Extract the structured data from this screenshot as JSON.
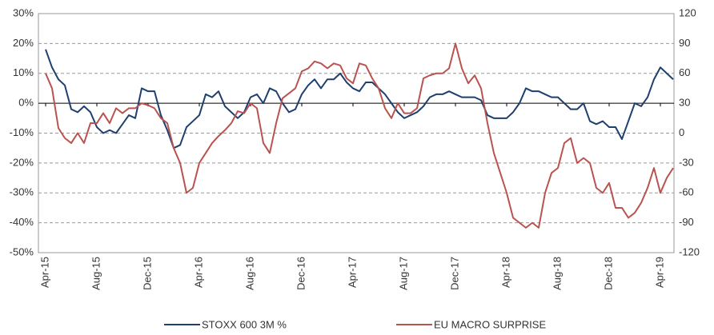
{
  "chart_data": {
    "type": "line",
    "categories": [
      "Apr-15",
      null,
      null,
      null,
      null,
      null,
      null,
      null,
      "Aug-15",
      null,
      null,
      null,
      null,
      null,
      null,
      null,
      "Dec-15",
      null,
      null,
      null,
      null,
      null,
      null,
      null,
      "Apr-16",
      null,
      null,
      null,
      null,
      null,
      null,
      null,
      "Aug-16",
      null,
      null,
      null,
      null,
      null,
      null,
      null,
      "Dec-16",
      null,
      null,
      null,
      null,
      null,
      null,
      null,
      "Apr-17",
      null,
      null,
      null,
      null,
      null,
      null,
      null,
      "Aug-17",
      null,
      null,
      null,
      null,
      null,
      null,
      null,
      "Dec-17",
      null,
      null,
      null,
      null,
      null,
      null,
      null,
      "Apr-18",
      null,
      null,
      null,
      null,
      null,
      null,
      null,
      "Aug-18",
      null,
      null,
      null,
      null,
      null,
      null,
      null,
      "Dec-18",
      null,
      null,
      null,
      null,
      null,
      null,
      null,
      "Apr-19",
      null,
      null
    ],
    "series": [
      {
        "name": "STOXX 600 3M %",
        "color": "#1f3f6e",
        "axis": "y",
        "values": [
          18,
          12,
          8,
          6,
          -2,
          -3,
          -1,
          -3,
          -8,
          -10,
          -9,
          -10,
          -7,
          -4,
          -5,
          5,
          4,
          4,
          -4,
          -9,
          -15,
          -14,
          -8,
          -6,
          -4,
          3,
          2,
          4,
          -1,
          -3,
          -5,
          -3,
          2,
          3,
          0,
          5,
          4,
          0,
          -3,
          -2,
          3,
          6,
          8,
          5,
          8,
          8,
          10,
          7,
          5,
          4,
          7,
          7,
          5,
          3,
          0,
          -3,
          -5,
          -4,
          -3,
          -1,
          2,
          3,
          3,
          4,
          3,
          2,
          2,
          2,
          1,
          -4,
          -5,
          -5,
          -5,
          -3,
          0,
          5,
          4,
          4,
          3,
          2,
          2,
          0,
          -2,
          -2,
          0,
          -6,
          -7,
          -6,
          -8,
          -8,
          -12,
          -6,
          0,
          -1,
          2,
          8,
          12,
          10,
          8
        ]
      },
      {
        "name": "EU MACRO SURPRISE",
        "color": "#b9534f",
        "axis": "y2",
        "values": [
          60,
          45,
          5,
          -5,
          -10,
          0,
          -10,
          10,
          10,
          20,
          10,
          25,
          20,
          25,
          25,
          30,
          28,
          25,
          15,
          10,
          -15,
          -30,
          -60,
          -55,
          -30,
          -20,
          -10,
          -3,
          3,
          10,
          22,
          20,
          30,
          25,
          -10,
          -20,
          10,
          35,
          40,
          45,
          62,
          65,
          72,
          70,
          65,
          70,
          68,
          55,
          50,
          70,
          68,
          55,
          45,
          25,
          15,
          30,
          20,
          20,
          25,
          55,
          58,
          60,
          60,
          65,
          90,
          65,
          50,
          58,
          45,
          10,
          -20,
          -40,
          -60,
          -85,
          -90,
          -95,
          -90,
          -95,
          -60,
          -40,
          -35,
          -10,
          -5,
          -30,
          -25,
          -30,
          -55,
          -60,
          -50,
          -75,
          -75,
          -85,
          -80,
          -70,
          -55,
          -35,
          -60,
          -45,
          -35
        ]
      }
    ],
    "ylim": [
      -50,
      30
    ],
    "yticks": [
      {
        "value": -50,
        "label": "-50%"
      },
      {
        "value": -40,
        "label": "-40%"
      },
      {
        "value": -30,
        "label": "-30%"
      },
      {
        "value": -20,
        "label": "-20%"
      },
      {
        "value": -10,
        "label": "-10%"
      },
      {
        "value": 0,
        "label": "0%"
      },
      {
        "value": 10,
        "label": "10%"
      },
      {
        "value": 20,
        "label": "20%"
      },
      {
        "value": 30,
        "label": "30%"
      }
    ],
    "y2lim": [
      -120,
      120
    ],
    "y2ticks": [
      -120,
      -90,
      -60,
      -30,
      0,
      30,
      60,
      90,
      120
    ],
    "grid": true
  }
}
